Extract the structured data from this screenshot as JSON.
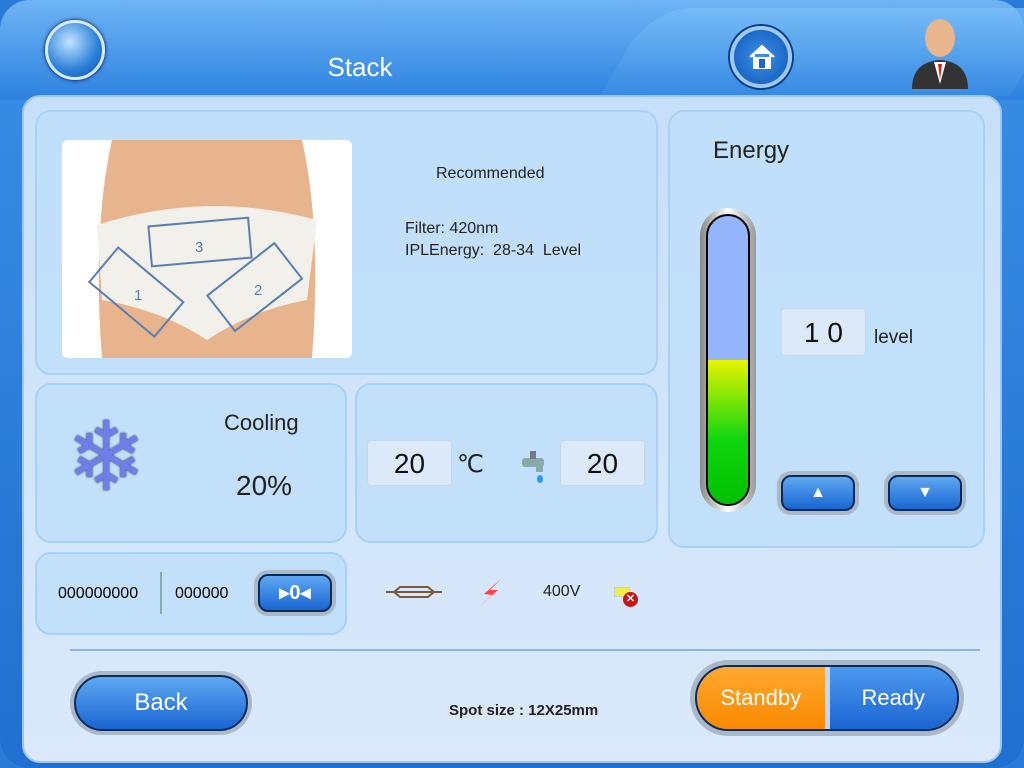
{
  "header": {
    "title": "Stack",
    "globe_icon": "globe-icon",
    "home_icon": "home-icon",
    "user_icon": "user-avatar-icon"
  },
  "treatment": {
    "heading": "Recommended",
    "filter": "Filter: 420nm",
    "energy": "IPLEnergy:  28-34  Level",
    "zones": [
      "1",
      "2",
      "3"
    ]
  },
  "cooling": {
    "label": "Cooling",
    "value": "20%",
    "icon": "snowflake-icon"
  },
  "temperature": {
    "value": "20",
    "unit": "℃",
    "water_value": "20",
    "water_icon": "faucet-icon"
  },
  "counter": {
    "total": "000000000",
    "session": "000000",
    "reset_label": "▸0◂"
  },
  "status": {
    "lamp_icon": "lamp-icon",
    "power_icon": "lightning-icon",
    "voltage": "400V",
    "error_icon": "error-icon"
  },
  "energy": {
    "title": "Energy",
    "level": "1 0",
    "unit": "level",
    "fill_fraction": 0.5,
    "up_icon": "▲",
    "down_icon": "▼"
  },
  "footer": {
    "back_label": "Back",
    "spot_size": "Spot size : 12X25mm",
    "standby_label": "Standby",
    "ready_label": "Ready",
    "active_mode": "Standby"
  },
  "colors": {
    "standby": "#f98a00",
    "ready": "#1a66d2"
  }
}
